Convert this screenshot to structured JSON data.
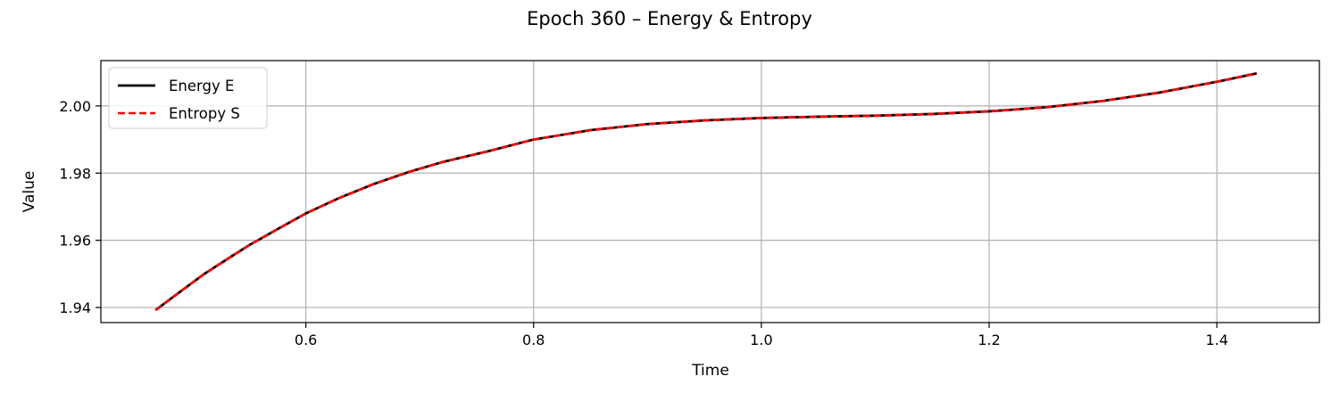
{
  "chart_data": {
    "type": "line",
    "title": "Epoch 360 – Energy & Entropy",
    "xlabel": "Time",
    "ylabel": "Value",
    "xlim": [
      0.42,
      1.49
    ],
    "ylim": [
      1.9355,
      2.0135
    ],
    "xticks": [
      0.6,
      0.8,
      1.0,
      1.2,
      1.4
    ],
    "yticks": [
      1.94,
      1.96,
      1.98,
      2.0
    ],
    "xtick_labels": [
      "0.6",
      "0.8",
      "1.0",
      "1.2",
      "1.4"
    ],
    "ytick_labels": [
      "1.94",
      "1.96",
      "1.98",
      "2.00"
    ],
    "grid": true,
    "legend_position": "upper-left",
    "x": [
      0.468,
      0.49,
      0.51,
      0.53,
      0.55,
      0.575,
      0.6,
      0.63,
      0.66,
      0.69,
      0.72,
      0.76,
      0.8,
      0.85,
      0.9,
      0.95,
      1.0,
      1.05,
      1.1,
      1.15,
      1.2,
      1.25,
      1.3,
      1.35,
      1.4,
      1.435
    ],
    "series": [
      {
        "name": "Energy E",
        "color": "#000000",
        "style": "solid",
        "values": [
          1.9392,
          1.9448,
          1.9498,
          1.9542,
          1.9585,
          1.9633,
          1.968,
          1.9727,
          1.9768,
          1.9803,
          1.9833,
          1.9865,
          1.99,
          1.9928,
          1.9946,
          1.9957,
          1.9964,
          1.9968,
          1.9971,
          1.9976,
          1.9984,
          1.9996,
          2.0015,
          2.004,
          2.0072,
          2.0097
        ]
      },
      {
        "name": "Entropy S",
        "color": "#ff0000",
        "style": "dashed",
        "values": [
          1.9392,
          1.9448,
          1.9498,
          1.9542,
          1.9585,
          1.9633,
          1.968,
          1.9727,
          1.9768,
          1.9803,
          1.9833,
          1.9865,
          1.99,
          1.9928,
          1.9946,
          1.9957,
          1.9964,
          1.9968,
          1.9971,
          1.9976,
          1.9984,
          1.9996,
          2.0015,
          2.004,
          2.0072,
          2.0097
        ]
      }
    ]
  }
}
